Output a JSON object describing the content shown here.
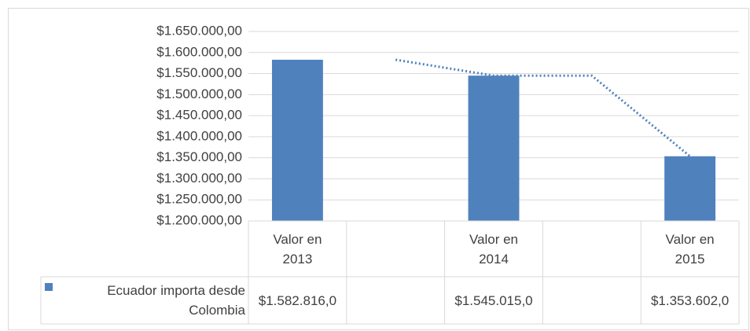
{
  "chart_data": {
    "type": "bar",
    "categories": [
      "Valor en 2013",
      null,
      "Valor en 2014",
      null,
      "Valor en 2015"
    ],
    "series": [
      {
        "name": "Ecuador importa desde Colombia",
        "color": "#4f81bd",
        "values": [
          1582816,
          null,
          1545015,
          null,
          1353602
        ],
        "value_labels": [
          "$1.582.816,0",
          null,
          "$1.545.015,0",
          null,
          "$1.353.602,0"
        ]
      }
    ],
    "trendline": {
      "type": "moving_average",
      "period": 2,
      "color": "#4f81bd"
    },
    "ylim": [
      1200000,
      1650000
    ],
    "yticks": [
      {
        "value": 1200000,
        "label": "$1.200.000,00"
      },
      {
        "value": 1250000,
        "label": "$1.250.000,00"
      },
      {
        "value": 1300000,
        "label": "$1.300.000,00"
      },
      {
        "value": 1350000,
        "label": "$1.350.000,00"
      },
      {
        "value": 1400000,
        "label": "$1.400.000,00"
      },
      {
        "value": 1450000,
        "label": "$1.450.000,00"
      },
      {
        "value": 1500000,
        "label": "$1.500.000,00"
      },
      {
        "value": 1550000,
        "label": "$1.550.000,00"
      },
      {
        "value": 1600000,
        "label": "$1.600.000,00"
      },
      {
        "value": 1650000,
        "label": "$1.650.000,00"
      }
    ],
    "grid": true,
    "data_table": true
  }
}
